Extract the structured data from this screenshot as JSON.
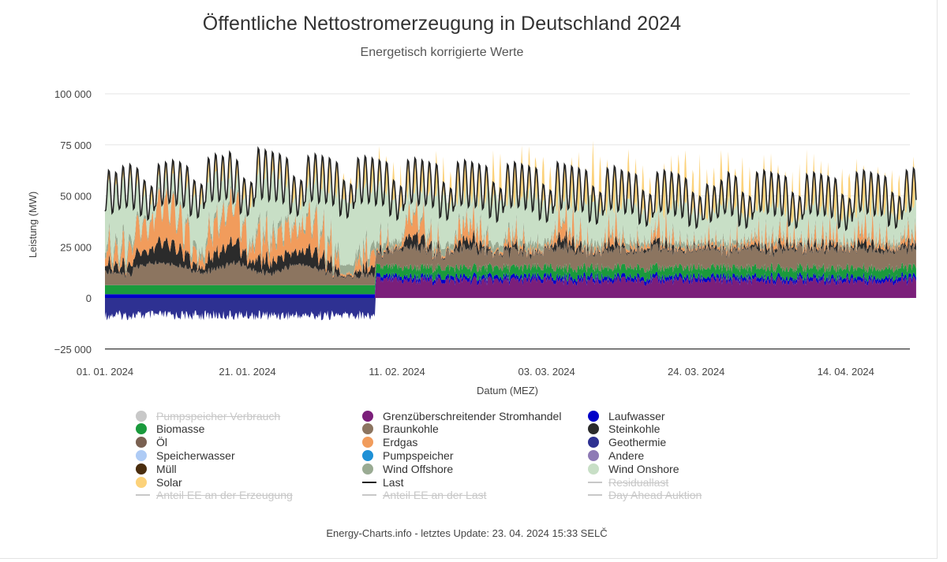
{
  "header": {
    "title": "Öffentliche Nettostromerzeugung in Deutschland 2024",
    "subtitle": "Energetisch korrigierte Werte"
  },
  "footer": {
    "text": "Energy-Charts.info - letztes Update: 23. 04. 2024 15:33 SELČ"
  },
  "chart_data": {
    "type": "area",
    "title": "Öffentliche Nettostromerzeugung in Deutschland 2024",
    "subtitle": "Energetisch korrigierte Werte",
    "xlabel": "Datum (MEZ)",
    "ylabel": "Leistung (MW)",
    "x_range": [
      "2024-01-01",
      "2024-04-23"
    ],
    "ylim": [
      -25000,
      100000
    ],
    "y_ticks": [
      100000,
      75000,
      50000,
      25000,
      0,
      -25000
    ],
    "y_tick_labels": [
      "100 000",
      "75 000",
      "50 000",
      "25 000",
      "0",
      "−25 000"
    ],
    "x_ticks": [
      "2024-01-01",
      "2024-01-21",
      "2024-02-11",
      "2024-03-03",
      "2024-03-24",
      "2024-04-14"
    ],
    "x_tick_labels": [
      "01. 01. 2024",
      "21. 01. 2024",
      "11. 02. 2024",
      "03. 03. 2024",
      "24. 03. 2024",
      "14. 04. 2024"
    ],
    "grid": true,
    "legend_position": "bottom",
    "daily_estimates": {
      "dates_start": "2024-01-01",
      "wind_onshore_peak_mw": [
        28000,
        30000,
        34000,
        32000,
        18000,
        14000,
        10000,
        8000,
        9000,
        12000,
        16000,
        20000,
        26000,
        30000,
        28000,
        22000,
        18000,
        12000,
        9000,
        14000,
        22000,
        28000,
        30000,
        32000,
        26000,
        20000,
        14000,
        12000,
        16000,
        20000,
        24000,
        30000,
        36000,
        40000,
        40000,
        38000,
        36000,
        34000,
        32000,
        28000,
        24000,
        18000,
        14000,
        12000,
        16000,
        22000,
        28000,
        30000,
        26000,
        20000,
        16000,
        14000,
        18000,
        24000,
        28000,
        26000,
        22000,
        20000,
        24000,
        30000,
        28000,
        24000,
        18000,
        14000,
        12000,
        16000,
        20000,
        24000,
        26000,
        22000,
        18000,
        16000,
        20000,
        24000,
        22000,
        18000,
        14000,
        12000,
        16000,
        20000,
        24000,
        22000,
        18000,
        16000,
        14000,
        18000,
        22000,
        24000,
        20000,
        16000,
        14000,
        16000,
        20000,
        22000,
        18000,
        14000,
        12000,
        14000,
        18000,
        20000,
        18000,
        16000,
        14000,
        16000,
        18000,
        16000,
        14000,
        16000,
        18000,
        20000,
        18000,
        16000,
        16000,
        18000
      ],
      "last_peak_mw": [
        63000,
        62000,
        65000,
        66000,
        64000,
        58000,
        55000,
        66000,
        67000,
        68000,
        67000,
        65000,
        58000,
        56000,
        69000,
        71000,
        70000,
        72000,
        68000,
        59000,
        57000,
        74000,
        73000,
        72000,
        71000,
        69000,
        60000,
        58000,
        70000,
        71000,
        70000,
        69000,
        67000,
        58000,
        56000,
        69000,
        70000,
        69000,
        68000,
        67000,
        58000,
        55000,
        68000,
        69000,
        68000,
        67000,
        66000,
        57000,
        54000,
        67000,
        68000,
        67000,
        66000,
        65000,
        57000,
        54000,
        66000,
        67000,
        66000,
        65000,
        64000,
        56000,
        53000,
        67000,
        66000,
        65000,
        64000,
        63000,
        55000,
        52000,
        64000,
        65000,
        63000,
        62000,
        61000,
        53000,
        51000,
        62000,
        63000,
        62000,
        61000,
        59000,
        52000,
        50000,
        56000,
        55000,
        58000,
        62000,
        60000,
        52000,
        50000,
        62000,
        63000,
        62000,
        61000,
        60000,
        52000,
        50000,
        61000,
        62000,
        61000,
        60000,
        59000,
        51000,
        49000,
        62000,
        63000,
        62000,
        61000,
        60000,
        52000,
        50000,
        63000,
        64000
      ],
      "last_trough_mw": [
        42000,
        41000,
        43000,
        44000,
        43000,
        40000,
        38000,
        44000,
        45000,
        46000,
        45000,
        44000,
        40000,
        39000,
        46000,
        47000,
        47000,
        48000,
        46000,
        41000,
        40000,
        48000,
        48000,
        47000,
        47000,
        46000,
        41000,
        40000,
        46000,
        47000,
        46000,
        46000,
        45000,
        40000,
        39000,
        46000,
        46000,
        46000,
        45000,
        45000,
        40000,
        38000,
        45000,
        46000,
        45000,
        45000,
        44000,
        39000,
        38000,
        44000,
        45000,
        44000,
        44000,
        43000,
        39000,
        37000,
        44000,
        44000,
        44000,
        43000,
        42000,
        38000,
        37000,
        44000,
        43000,
        43000,
        42000,
        42000,
        37000,
        36000,
        42000,
        43000,
        42000,
        41000,
        41000,
        36000,
        35000,
        41000,
        42000,
        41000,
        40000,
        39000,
        35000,
        34000,
        38000,
        37000,
        39000,
        41000,
        40000,
        35000,
        34000,
        41000,
        42000,
        41000,
        40000,
        40000,
        35000,
        34000,
        40000,
        41000,
        40000,
        40000,
        39000,
        34000,
        33000,
        41000,
        42000,
        41000,
        40000,
        40000,
        35000,
        34000,
        42000,
        42000
      ]
    },
    "series": [
      {
        "name": "Pumpspeicher Verbrauch",
        "color": "#c8c8c8",
        "visible": false,
        "marker": "dot"
      },
      {
        "name": "Grenzüberschreitender Stromhandel",
        "color": "#7b1f7a",
        "visible": true,
        "marker": "dot"
      },
      {
        "name": "Laufwasser",
        "color": "#0000c8",
        "visible": true,
        "marker": "dot"
      },
      {
        "name": "Biomasse",
        "color": "#1a9a3c",
        "visible": true,
        "marker": "dot"
      },
      {
        "name": "Braunkohle",
        "color": "#8c7560",
        "visible": true,
        "marker": "dot"
      },
      {
        "name": "Steinkohle",
        "color": "#2b2b2b",
        "visible": true,
        "marker": "dot"
      },
      {
        "name": "Öl",
        "color": "#7a6151",
        "visible": true,
        "marker": "dot"
      },
      {
        "name": "Erdgas",
        "color": "#f19c5c",
        "visible": true,
        "marker": "dot"
      },
      {
        "name": "Geothermie",
        "color": "#2e3192",
        "visible": true,
        "marker": "dot"
      },
      {
        "name": "Speicherwasser",
        "color": "#aecbf5",
        "visible": true,
        "marker": "dot"
      },
      {
        "name": "Pumpspeicher",
        "color": "#1e90d6",
        "visible": true,
        "marker": "dot"
      },
      {
        "name": "Andere",
        "color": "#8e7ab5",
        "visible": true,
        "marker": "dot"
      },
      {
        "name": "Müll",
        "color": "#4a2d0e",
        "visible": true,
        "marker": "dot"
      },
      {
        "name": "Wind Offshore",
        "color": "#9aab93",
        "visible": true,
        "marker": "dot"
      },
      {
        "name": "Wind Onshore",
        "color": "#c8dfc6",
        "visible": true,
        "marker": "dot"
      },
      {
        "name": "Solar",
        "color": "#fcd27a",
        "visible": true,
        "marker": "dot"
      },
      {
        "name": "Last",
        "color": "#222222",
        "visible": true,
        "marker": "line"
      },
      {
        "name": "Residuallast",
        "color": "#c8c8c8",
        "visible": false,
        "marker": "line"
      },
      {
        "name": "Anteil EE an der Erzeugung",
        "color": "#c8c8c8",
        "visible": false,
        "marker": "line"
      },
      {
        "name": "Anteil EE an der Last",
        "color": "#c8c8c8",
        "visible": false,
        "marker": "line"
      },
      {
        "name": "Day Ahead Auktion",
        "color": "#c8c8c8",
        "visible": false,
        "marker": "line"
      }
    ]
  }
}
